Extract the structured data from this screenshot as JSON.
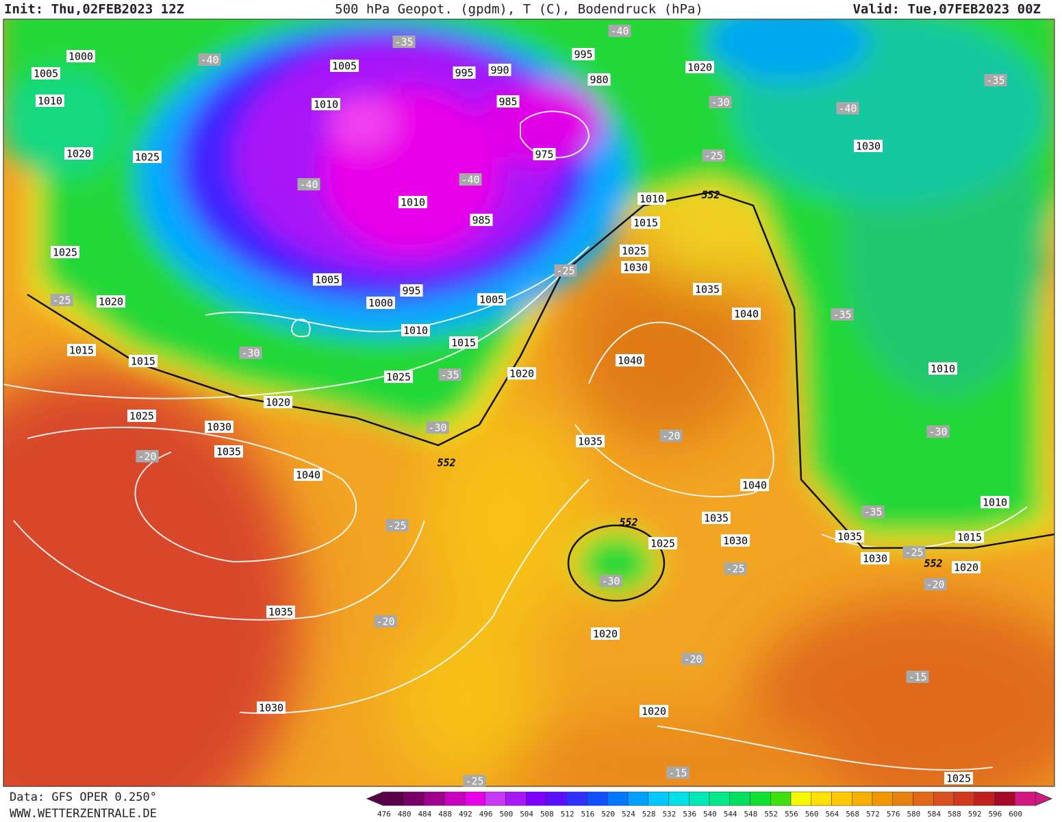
{
  "header": {
    "init": "Init: Thu,02FEB2023 12Z",
    "title": "500 hPa Geopot. (gpdm), T (C), Bodendruck (hPa)",
    "valid": "Valid: Tue,07FEB2023 00Z"
  },
  "footer": {
    "data": "Data: GFS OPER 0.250°",
    "website": "WWW.WETTERZENTRALE.DE"
  },
  "map": {
    "pressure_labels": [
      1000,
      1005,
      1010,
      1020,
      1025,
      1025,
      1020,
      1015,
      1015,
      1005,
      995,
      990,
      995,
      980,
      985,
      975,
      1010,
      1010,
      985,
      1005,
      995,
      1000,
      1005,
      1010,
      1015,
      1025,
      1020,
      1020,
      1025,
      1030,
      1035,
      1040,
      1035,
      1030,
      1020,
      1030,
      1010,
      1015,
      1025,
      1030,
      1035,
      1040,
      1040,
      1035,
      1040,
      1035,
      1030,
      1025,
      1020,
      1020,
      1025,
      1035,
      1030,
      1010,
      1010,
      1015,
      1020
    ],
    "temperature_labels": [
      -40,
      -35,
      -40,
      -30,
      -35,
      -40,
      -25,
      -40,
      -40,
      -25,
      -25,
      -30,
      -35,
      -30,
      -20,
      -25,
      -20,
      -20,
      -30,
      -25,
      -20,
      -15,
      -15,
      -35,
      -30,
      -35,
      -25,
      -20,
      -25
    ],
    "contour_552_labels": [
      552,
      552,
      552,
      552
    ]
  },
  "colorbar": {
    "labels": [
      476,
      480,
      484,
      488,
      492,
      496,
      500,
      504,
      508,
      512,
      516,
      520,
      524,
      528,
      532,
      536,
      540,
      544,
      548,
      552,
      556,
      560,
      564,
      568,
      572,
      576,
      580,
      584,
      588,
      592,
      596,
      600
    ],
    "colors": [
      "#5a0048",
      "#7a0068",
      "#a0008e",
      "#c800c0",
      "#e800e8",
      "#c838f8",
      "#a818f8",
      "#8000ff",
      "#5a10ff",
      "#3030ff",
      "#1050ff",
      "#0078ff",
      "#00a0ff",
      "#00c8ff",
      "#00e0e8",
      "#00e8b8",
      "#00e888",
      "#00e060",
      "#10e030",
      "#40e010",
      "#f8f800",
      "#ffe000",
      "#ffc800",
      "#f8b000",
      "#f09800",
      "#e88010",
      "#e06818",
      "#d85020",
      "#d03820",
      "#c02020",
      "#a80828",
      "#d01880"
    ]
  }
}
